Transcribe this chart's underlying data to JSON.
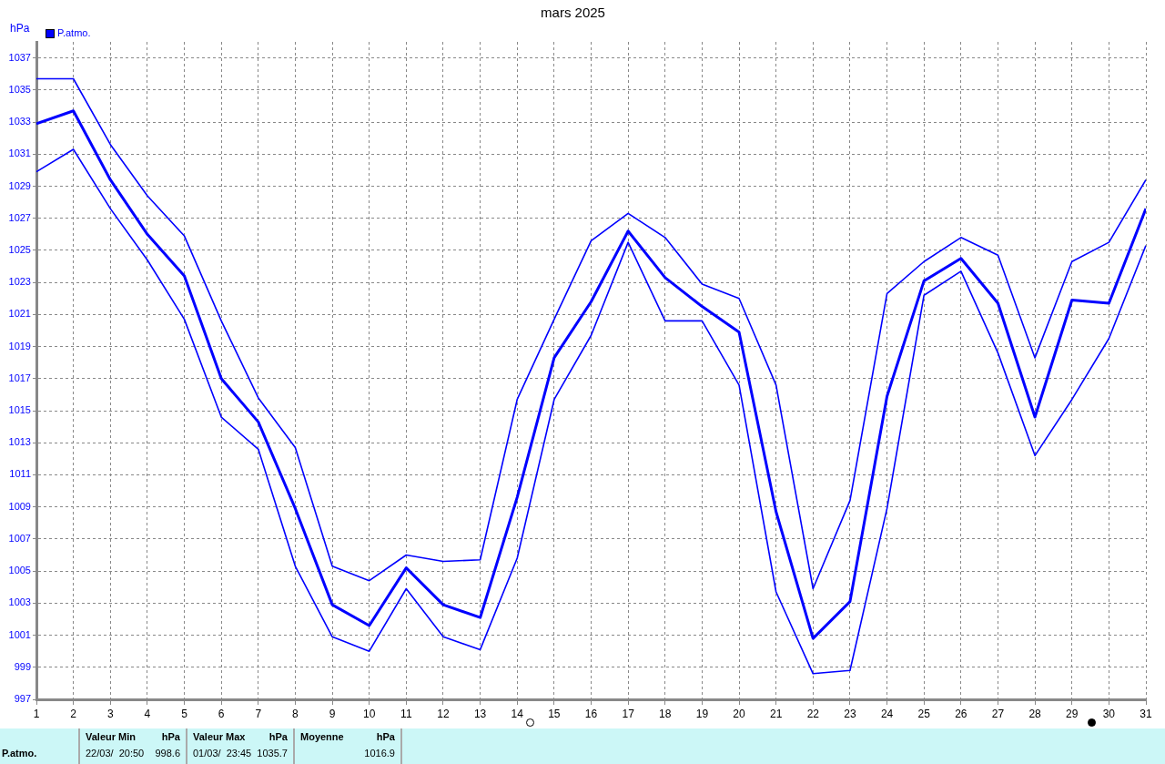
{
  "chart_data": {
    "type": "line",
    "title": "mars 2025",
    "ylabel": "hPa",
    "x": [
      1,
      2,
      3,
      4,
      5,
      6,
      7,
      8,
      9,
      10,
      11,
      12,
      13,
      14,
      15,
      16,
      17,
      18,
      19,
      20,
      21,
      22,
      23,
      24,
      25,
      26,
      27,
      28,
      29,
      30,
      31
    ],
    "xlim": [
      1,
      31
    ],
    "xticks": [
      1,
      2,
      3,
      4,
      5,
      6,
      7,
      8,
      9,
      10,
      11,
      12,
      13,
      14,
      15,
      16,
      17,
      18,
      19,
      20,
      21,
      22,
      23,
      24,
      25,
      26,
      27,
      28,
      29,
      30,
      31
    ],
    "ylim": [
      997,
      1038
    ],
    "yticks": [
      997,
      999,
      1001,
      1003,
      1005,
      1007,
      1009,
      1011,
      1013,
      1015,
      1017,
      1019,
      1021,
      1023,
      1025,
      1027,
      1029,
      1031,
      1033,
      1035,
      1037
    ],
    "series": [
      {
        "color": "#0000ff",
        "values": [
          1035.7,
          1035.7,
          1031.6,
          1028.4,
          1025.9,
          1020.6,
          1015.8,
          1012.7,
          1005.3,
          1004.4,
          1006.0,
          1005.6,
          1005.7,
          1015.7,
          1020.7,
          1025.6,
          1027.3,
          1025.8,
          1022.9,
          1022.0,
          1016.6,
          1003.9,
          1009.4,
          1022.3,
          1024.3,
          1025.8,
          1024.7,
          1018.3,
          1024.3,
          1025.5,
          1029.4
        ]
      },
      {
        "name": "P.atmo.",
        "color": "#0000ff",
        "values": [
          1032.9,
          1033.7,
          1029.4,
          1026.0,
          1023.4,
          1017.0,
          1014.3,
          1008.9,
          1002.9,
          1001.6,
          1005.2,
          1002.9,
          1002.1,
          1009.6,
          1018.3,
          1021.8,
          1026.2,
          1023.3,
          1021.5,
          1019.9,
          1008.7,
          1000.8,
          1003.1,
          1015.9,
          1023.1,
          1024.5,
          1021.7,
          1014.6,
          1021.9,
          1021.7,
          1027.6
        ]
      },
      {
        "color": "#0000ff",
        "values": [
          1029.9,
          1031.3,
          1027.6,
          1024.4,
          1020.7,
          1014.6,
          1012.6,
          1005.3,
          1000.9,
          1000.0,
          1003.9,
          1000.9,
          1000.1,
          1005.8,
          1015.7,
          1019.7,
          1025.5,
          1020.6,
          1020.6,
          1016.6,
          1003.7,
          998.6,
          998.8,
          1008.9,
          1022.2,
          1023.7,
          1018.6,
          1012.2,
          1015.7,
          1019.5,
          1025.3
        ]
      }
    ],
    "grid": true,
    "legend": "top left",
    "marker": "none",
    "line_style": "solid",
    "annotations": [
      "P.atmo.",
      "Valeur Min",
      "hPa",
      "22/03/  20:50",
      "998.6",
      "Valeur Max",
      "hPa",
      "01/03/  23:45",
      "1035.7",
      "Moyenne",
      "hPa",
      "1016.9"
    ]
  }
}
